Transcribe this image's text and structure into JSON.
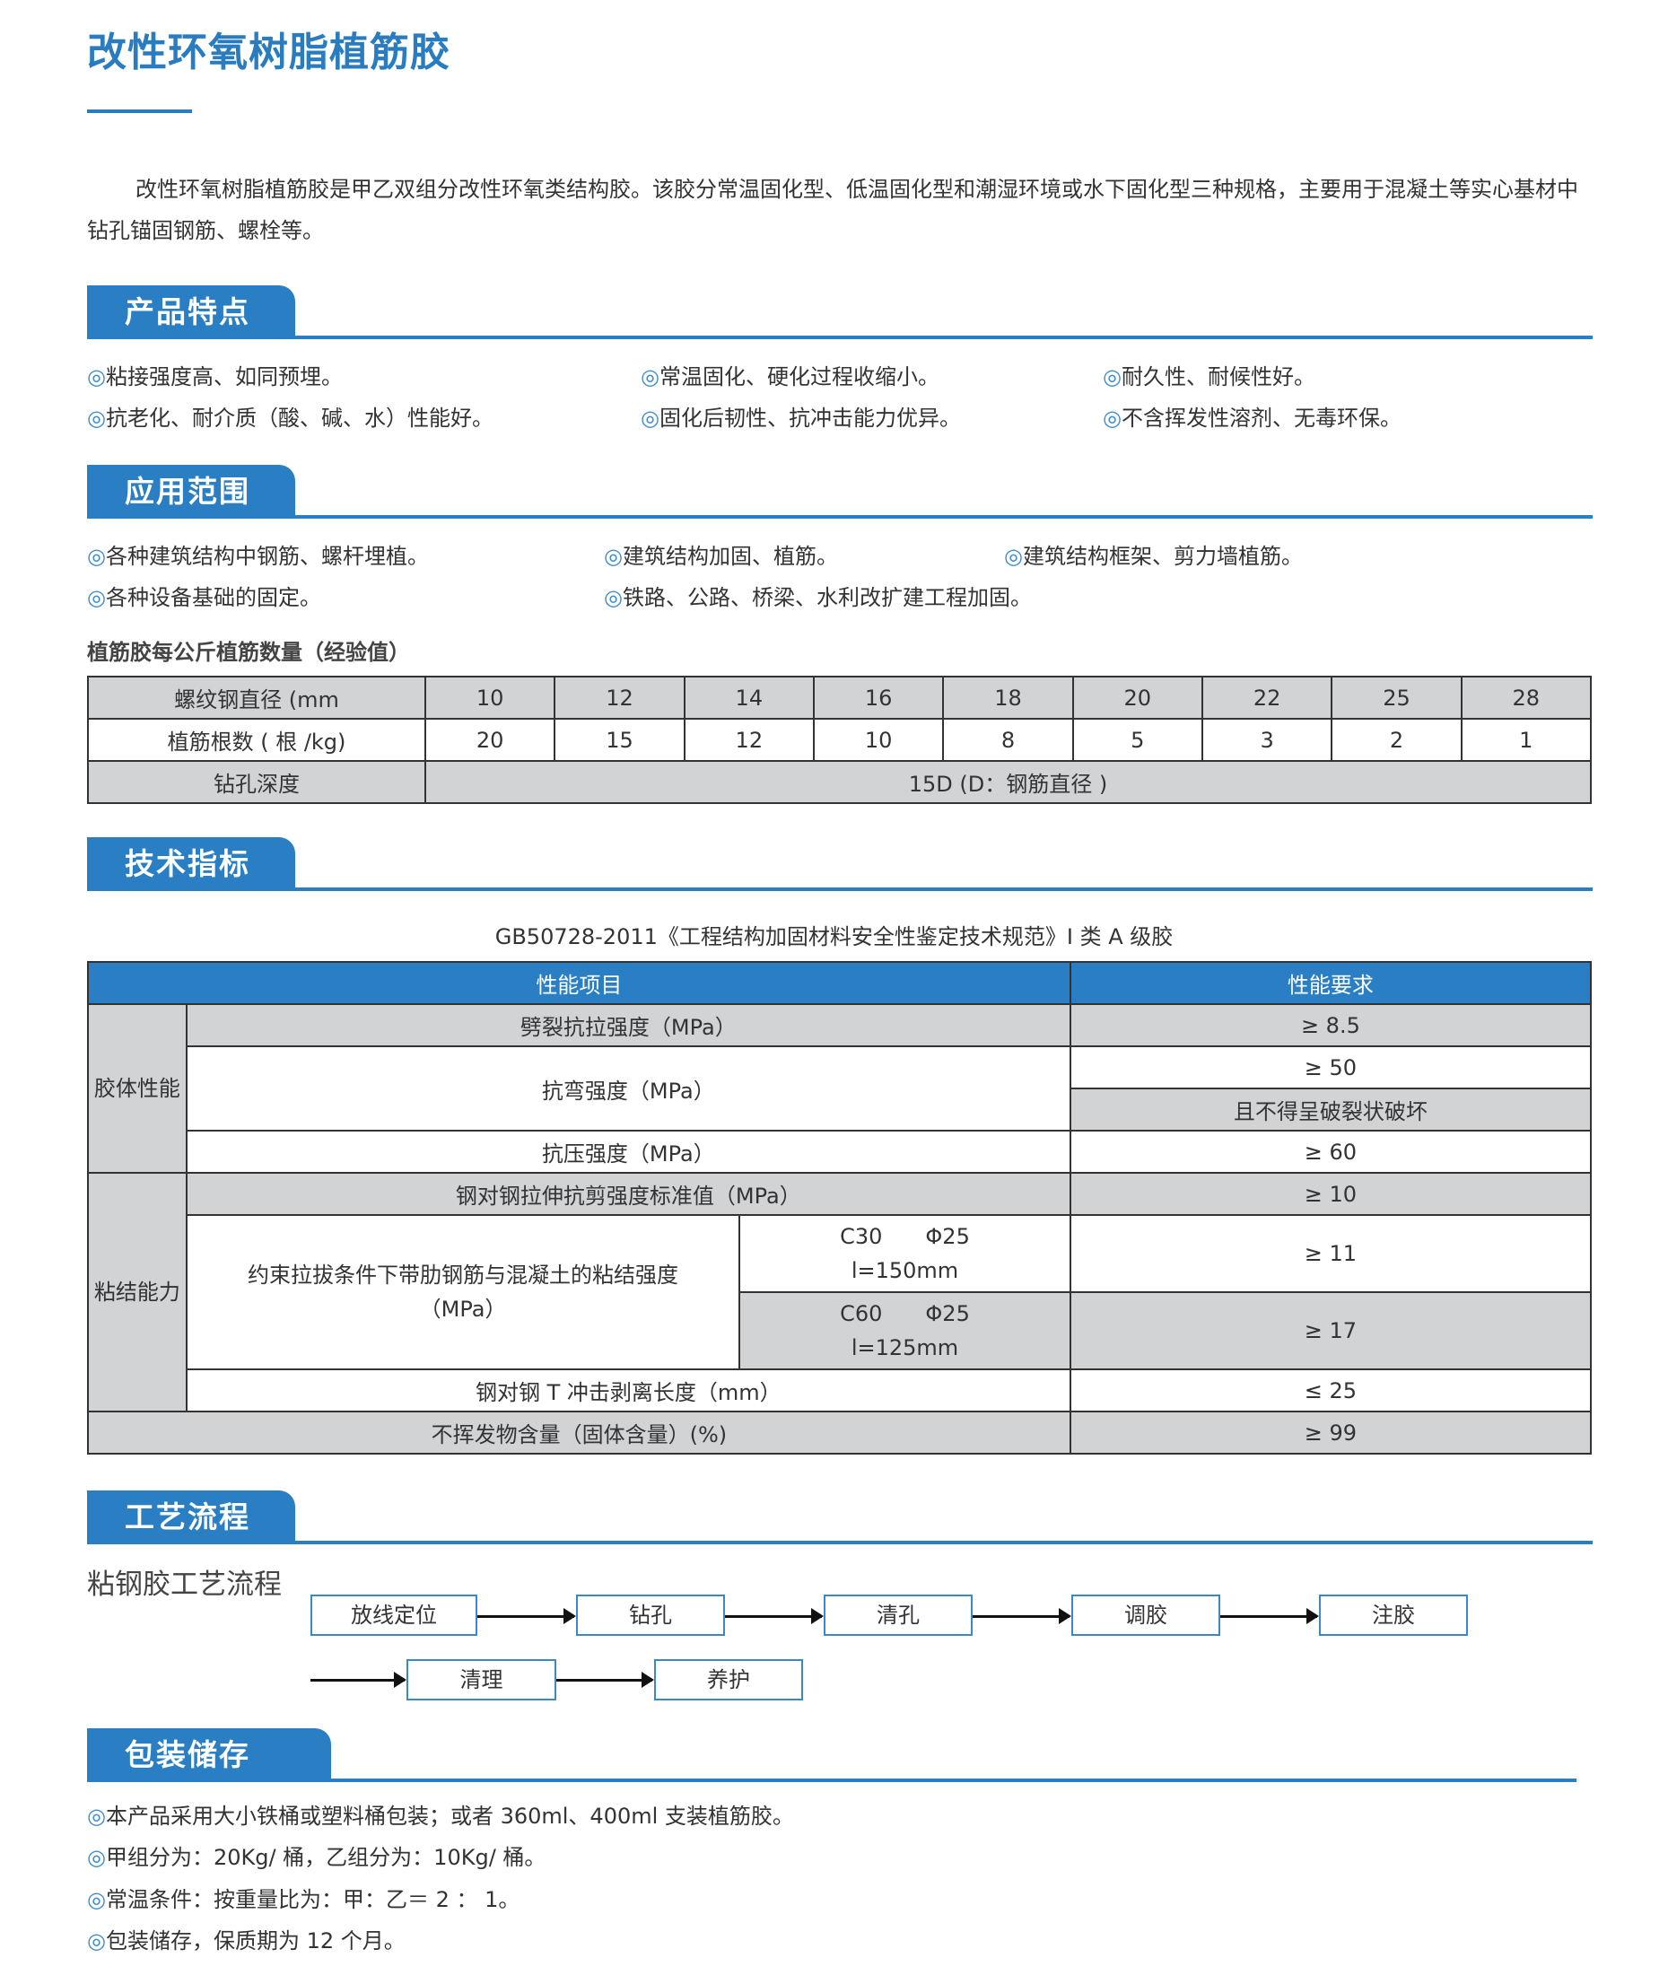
{
  "title": "改性环氧树脂植筋胶",
  "intro": "改性环氧树脂植筋胶是甲乙双组分改性环氧类结构胶。该胶分常温固化型、低温固化型和潮湿环境或水下固化型三种规格，主要用于混凝土等实心基材中钻孔锚固钢筋、螺栓等。",
  "bullet": "◎",
  "features": {
    "heading": "产品特点",
    "items": [
      "粘接强度高、如同预埋。",
      "常温固化、硬化过程收缩小。",
      "耐久性、耐候性好。",
      "抗老化、耐介质（酸、碱、水）性能好。",
      "固化后韧性、抗冲击能力优异。",
      "不含挥发性溶剂、无毒环保。"
    ]
  },
  "applications": {
    "heading": "应用范围",
    "items": [
      "各种建筑结构中钢筋、螺杆埋植。",
      "建筑结构加固、植筋。",
      "建筑结构框架、剪力墙植筋。",
      "各种设备基础的固定。",
      "铁路、公路、桥梁、水利改扩建工程加固。"
    ]
  },
  "rebar_table": {
    "caption": "植筋胶每公斤植筋数量（经验值）",
    "row_labels": [
      "螺纹钢直径 (mm",
      "植筋根数 ( 根 /kg)",
      "钻孔深度"
    ],
    "diameters": [
      "10",
      "12",
      "14",
      "16",
      "18",
      "20",
      "22",
      "25",
      "28"
    ],
    "counts": [
      "20",
      "15",
      "12",
      "10",
      "8",
      "5",
      "3",
      "2",
      "1"
    ],
    "depth": "15D (D：钢筋直径 )"
  },
  "specs": {
    "heading": "技术指标",
    "standard": "GB50728-2011《工程结构加固材料安全性鉴定技术规范》I 类 A 级胶",
    "col_item": "性能项目",
    "col_req": "性能要求",
    "group1": "胶体性能",
    "group2": "粘结能力",
    "r1": "劈裂抗拉强度（MPa）",
    "r1v": "≥ 8.5",
    "r2": "抗弯强度（MPa）",
    "r2v": "≥ 50",
    "r2v2": "且不得呈破裂状破坏",
    "r3": "抗压强度（MPa）",
    "r3v": "≥ 60",
    "r4": "钢对钢拉伸抗剪强度标准值（MPa）",
    "r4v": "≥ 10",
    "r5": "约束拉拔条件下带肋钢筋与混凝土的粘结强度（MPa）",
    "r5a": "C30　　Φ25",
    "r5a2": "l=150mm",
    "r5av": "≥ 11",
    "r5b": "C60　　Φ25",
    "r5b2": "l=125mm",
    "r5bv": "≥ 17",
    "r6": "钢对钢 T 冲击剥离长度（mm）",
    "r6v": "≤ 25",
    "r7": "不挥发物含量（固体含量）(%)",
    "r7v": "≥ 99"
  },
  "process": {
    "heading": "工艺流程",
    "subtitle": "粘钢胶工艺流程",
    "steps": [
      "放线定位",
      "钻孔",
      "清孔",
      "调胶",
      "注胶",
      "清理",
      "养护"
    ]
  },
  "packaging": {
    "heading": "包装储存",
    "items": [
      "本产品采用大小铁桶或塑料桶包装；或者 360ml、400ml 支装植筋胶。",
      "甲组分为：20Kg/ 桶，乙组分为：10Kg/ 桶。",
      "常温条件：按重量比为：甲：乙＝ 2 ： 1。",
      "包装储存，保质期为 12 个月。"
    ]
  },
  "colors": {
    "brand_blue": "#2a7fc4",
    "table_gray": "#d2d3d5"
  }
}
